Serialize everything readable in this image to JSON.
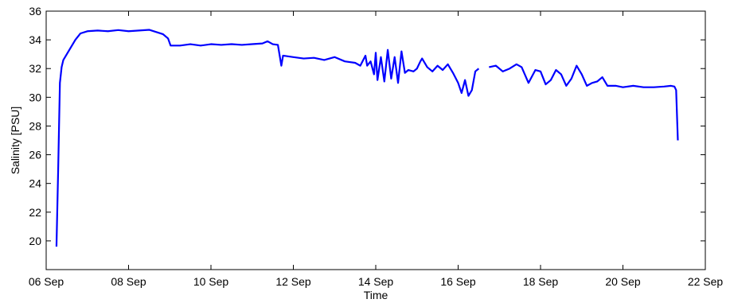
{
  "chart_data": {
    "type": "line",
    "title": "",
    "xlabel": "Time",
    "ylabel": "Salinity [PSU]",
    "xlim": [
      "2023-09-06",
      "2023-09-22"
    ],
    "ylim": [
      18,
      36
    ],
    "xticks": [
      {
        "date": "2023-09-06",
        "label": "06 Sep"
      },
      {
        "date": "2023-09-08",
        "label": "08 Sep"
      },
      {
        "date": "2023-09-10",
        "label": "10 Sep"
      },
      {
        "date": "2023-09-12",
        "label": "12 Sep"
      },
      {
        "date": "2023-09-14",
        "label": "14 Sep"
      },
      {
        "date": "2023-09-16",
        "label": "16 Sep"
      },
      {
        "date": "2023-09-18",
        "label": "18 Sep"
      },
      {
        "date": "2023-09-20",
        "label": "20 Sep"
      },
      {
        "date": "2023-09-22",
        "label": "22 Sep"
      }
    ],
    "yticks": [
      20,
      22,
      24,
      26,
      28,
      30,
      32,
      34,
      36
    ],
    "grid": false,
    "line_color": "#0000ff",
    "series": [
      {
        "segments": [
          [
            [
              "2023-09-06T06:00",
              19.6
            ],
            [
              "2023-09-06T07:00",
              25.0
            ],
            [
              "2023-09-06T08:00",
              31.0
            ],
            [
              "2023-09-06T09:00",
              32.1
            ],
            [
              "2023-09-06T10:00",
              32.6
            ],
            [
              "2023-09-06T12:00",
              33.0
            ],
            [
              "2023-09-06T14:00",
              33.4
            ],
            [
              "2023-09-06T17:00",
              34.0
            ],
            [
              "2023-09-06T20:00",
              34.45
            ],
            [
              "2023-09-07T00:00",
              34.6
            ],
            [
              "2023-09-07T06:00",
              34.65
            ],
            [
              "2023-09-07T12:00",
              34.6
            ],
            [
              "2023-09-07T18:00",
              34.68
            ],
            [
              "2023-09-08T00:00",
              34.6
            ],
            [
              "2023-09-08T06:00",
              34.65
            ],
            [
              "2023-09-08T12:00",
              34.7
            ],
            [
              "2023-09-08T16:00",
              34.55
            ],
            [
              "2023-09-08T20:00",
              34.4
            ],
            [
              "2023-09-08T23:00",
              34.1
            ],
            [
              "2023-09-09T00:30",
              33.6
            ],
            [
              "2023-09-09T06:00",
              33.6
            ],
            [
              "2023-09-09T12:00",
              33.7
            ],
            [
              "2023-09-09T18:00",
              33.6
            ],
            [
              "2023-09-10T00:00",
              33.7
            ],
            [
              "2023-09-10T06:00",
              33.65
            ],
            [
              "2023-09-10T12:00",
              33.7
            ],
            [
              "2023-09-10T18:00",
              33.65
            ],
            [
              "2023-09-11T00:00",
              33.7
            ],
            [
              "2023-09-11T06:00",
              33.75
            ],
            [
              "2023-09-11T09:00",
              33.9
            ],
            [
              "2023-09-11T12:00",
              33.7
            ],
            [
              "2023-09-11T15:00",
              33.65
            ],
            [
              "2023-09-11T17:00",
              32.2
            ],
            [
              "2023-09-11T18:00",
              32.9
            ],
            [
              "2023-09-12T00:00",
              32.8
            ],
            [
              "2023-09-12T06:00",
              32.7
            ],
            [
              "2023-09-12T12:00",
              32.75
            ],
            [
              "2023-09-12T18:00",
              32.6
            ],
            [
              "2023-09-13T00:00",
              32.8
            ],
            [
              "2023-09-13T06:00",
              32.5
            ],
            [
              "2023-09-13T12:00",
              32.4
            ],
            [
              "2023-09-13T15:00",
              32.2
            ],
            [
              "2023-09-13T18:00",
              32.9
            ],
            [
              "2023-09-13T19:00",
              32.2
            ],
            [
              "2023-09-13T21:00",
              32.5
            ],
            [
              "2023-09-13T23:00",
              31.6
            ],
            [
              "2023-09-14T00:00",
              33.1
            ],
            [
              "2023-09-14T01:00",
              31.2
            ],
            [
              "2023-09-14T03:00",
              32.8
            ],
            [
              "2023-09-14T05:00",
              31.1
            ],
            [
              "2023-09-14T07:00",
              33.3
            ],
            [
              "2023-09-14T09:00",
              31.3
            ],
            [
              "2023-09-14T11:00",
              32.8
            ],
            [
              "2023-09-14T13:00",
              31.0
            ],
            [
              "2023-09-14T15:00",
              33.2
            ],
            [
              "2023-09-14T17:00",
              31.7
            ],
            [
              "2023-09-14T19:00",
              31.9
            ],
            [
              "2023-09-14T22:00",
              31.8
            ],
            [
              "2023-09-15T00:00",
              32.0
            ],
            [
              "2023-09-15T02:00",
              32.5
            ],
            [
              "2023-09-15T03:00",
              32.7
            ],
            [
              "2023-09-15T06:00",
              32.1
            ],
            [
              "2023-09-15T09:00",
              31.8
            ],
            [
              "2023-09-15T12:00",
              32.2
            ],
            [
              "2023-09-15T15:00",
              31.9
            ],
            [
              "2023-09-15T18:00",
              32.3
            ],
            [
              "2023-09-15T21:00",
              31.7
            ],
            [
              "2023-09-16T00:00",
              31.0
            ],
            [
              "2023-09-16T02:00",
              30.3
            ],
            [
              "2023-09-16T04:00",
              31.2
            ],
            [
              "2023-09-16T06:00",
              30.1
            ],
            [
              "2023-09-16T08:00",
              30.5
            ],
            [
              "2023-09-16T10:00",
              31.8
            ],
            [
              "2023-09-16T12:00",
              32.0
            ]
          ],
          [
            [
              "2023-09-16T18:00",
              32.1
            ],
            [
              "2023-09-16T22:00",
              32.2
            ],
            [
              "2023-09-17T02:00",
              31.8
            ],
            [
              "2023-09-17T06:00",
              32.0
            ],
            [
              "2023-09-17T10:00",
              32.3
            ],
            [
              "2023-09-17T13:00",
              32.1
            ],
            [
              "2023-09-17T17:00",
              31.0
            ],
            [
              "2023-09-17T21:00",
              31.9
            ],
            [
              "2023-09-18T00:00",
              31.8
            ],
            [
              "2023-09-18T03:00",
              30.9
            ],
            [
              "2023-09-18T06:00",
              31.2
            ],
            [
              "2023-09-18T09:00",
              31.9
            ],
            [
              "2023-09-18T12:00",
              31.6
            ],
            [
              "2023-09-18T15:00",
              30.8
            ],
            [
              "2023-09-18T18:00",
              31.3
            ],
            [
              "2023-09-18T21:00",
              32.2
            ],
            [
              "2023-09-19T00:00",
              31.6
            ],
            [
              "2023-09-19T03:00",
              30.8
            ],
            [
              "2023-09-19T06:00",
              31.0
            ],
            [
              "2023-09-19T09:00",
              31.1
            ],
            [
              "2023-09-19T12:00",
              31.4
            ],
            [
              "2023-09-19T15:00",
              30.8
            ],
            [
              "2023-09-19T20:00",
              30.8
            ],
            [
              "2023-09-20T00:00",
              30.7
            ],
            [
              "2023-09-20T06:00",
              30.8
            ],
            [
              "2023-09-20T12:00",
              30.7
            ],
            [
              "2023-09-20T18:00",
              30.7
            ],
            [
              "2023-09-21T00:00",
              30.75
            ],
            [
              "2023-09-21T04:00",
              30.8
            ],
            [
              "2023-09-21T06:00",
              30.75
            ],
            [
              "2023-09-21T07:00",
              30.5
            ],
            [
              "2023-09-21T08:00",
              27.0
            ]
          ]
        ]
      }
    ]
  }
}
